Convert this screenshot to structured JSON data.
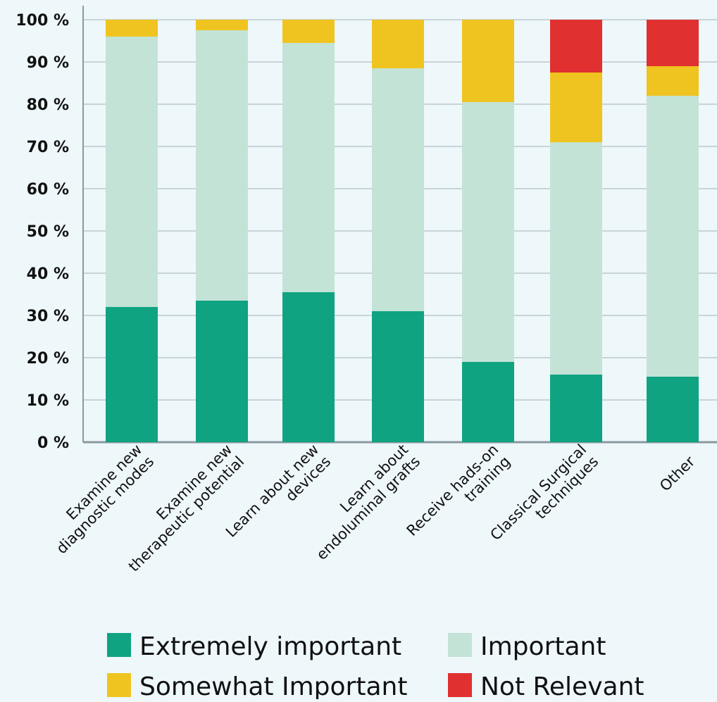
{
  "chart_data": {
    "type": "bar",
    "stacked": true,
    "categories": [
      [
        "Examine new",
        "diagnostic modes"
      ],
      [
        "Examine new",
        "therapeutic potential"
      ],
      [
        "Learn about new",
        "devices"
      ],
      [
        "Learn about",
        "endoluminal grafts"
      ],
      [
        "Receive hads-on",
        "training"
      ],
      [
        "Classical Surgical",
        "techniques"
      ],
      [
        "Other"
      ]
    ],
    "series": [
      {
        "name": "Extremely important",
        "color": "#0fa382",
        "values": [
          32,
          33.5,
          35.5,
          31,
          19,
          16,
          15.5
        ]
      },
      {
        "name": "Important",
        "color": "#c3e3d6",
        "values": [
          64,
          64,
          59,
          57.5,
          61.5,
          55,
          66.5
        ]
      },
      {
        "name": "Somewhat Important",
        "color": "#f0c420",
        "values": [
          4,
          2.5,
          5.5,
          11.5,
          19.5,
          16.5,
          7
        ]
      },
      {
        "name": "Not Relevant",
        "color": "#e03030",
        "values": [
          0,
          0,
          0,
          0,
          0,
          12.5,
          11
        ]
      }
    ],
    "ylim": [
      0,
      100
    ],
    "yticks": [
      "0 %",
      "10 %",
      "20 %",
      "30 %",
      "40 %",
      "50 %",
      "60 %",
      "70 %",
      "80 %",
      "90 %",
      "100 %"
    ],
    "grid": true,
    "legend_position": "bottom"
  }
}
